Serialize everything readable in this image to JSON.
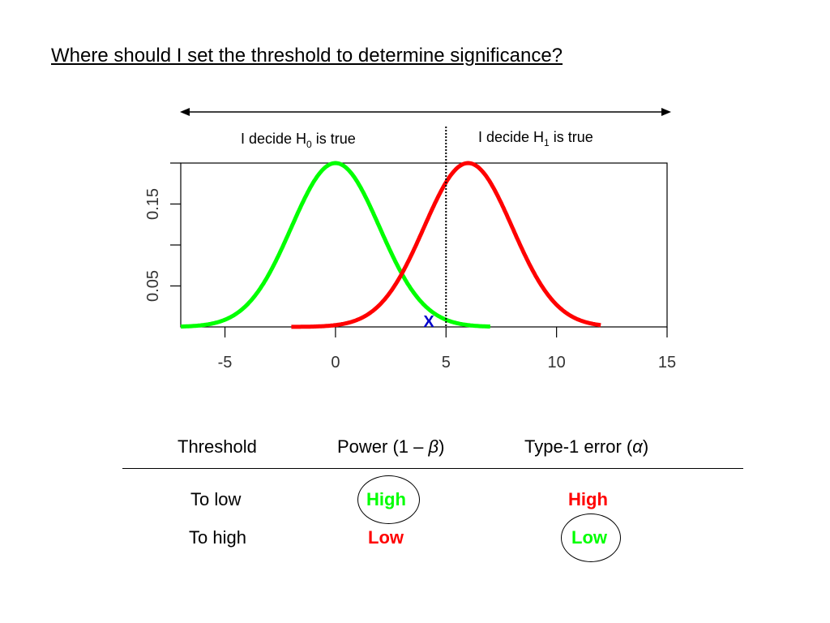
{
  "title": "Where should I set the threshold to determine significance?",
  "decision_labels": {
    "h0": {
      "prefix": "I decide H",
      "sub": "0",
      "suffix": " is true"
    },
    "h1": {
      "prefix": "I decide H",
      "sub": "1",
      "suffix": " is true"
    }
  },
  "marker_label": "X",
  "colors": {
    "null_curve": "#00ff00",
    "alt_curve": "#ff0000",
    "threshold_line": "#000000",
    "marker": "#0000cc",
    "high_green": "#00ff00",
    "low_red": "#ff0000",
    "high_red": "#ff0000",
    "low_green": "#00ff00"
  },
  "chart_data": {
    "type": "line",
    "xlim": [
      -7,
      15
    ],
    "ylim": [
      0,
      0.2
    ],
    "x_ticks": [
      "-5",
      "0",
      "5",
      "10",
      "15"
    ],
    "y_ticks": [
      "0.05",
      "0.15"
    ],
    "threshold_x": 5,
    "marker_x": 4,
    "series": [
      {
        "color": "#00ff00",
        "mean": 0,
        "sd": 2,
        "x_range": [
          -7,
          7
        ]
      },
      {
        "color": "#ff0000",
        "mean": 6,
        "sd": 2,
        "x_range": [
          -2,
          12
        ]
      }
    ]
  },
  "table": {
    "headers": {
      "threshold": "Threshold",
      "power_prefix": "Power (1 – ",
      "power_symbol": "β",
      "power_suffix": ")",
      "type1_prefix": "Type-1 error (",
      "type1_symbol": "α",
      "type1_suffix": ")"
    },
    "rows": [
      {
        "label": "To low",
        "power": "High",
        "type1": "High"
      },
      {
        "label": "To high",
        "power": "Low",
        "type1": "Low"
      }
    ]
  }
}
